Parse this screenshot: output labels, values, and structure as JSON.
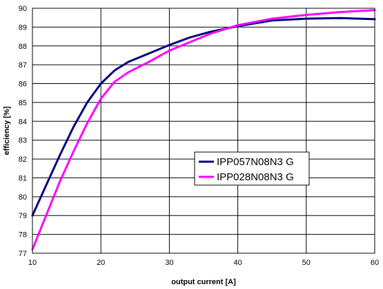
{
  "chart_data": {
    "type": "line",
    "xlabel": "output current [A]",
    "ylabel": "efficiency [%]",
    "xlim": [
      10,
      60
    ],
    "ylim": [
      77,
      90
    ],
    "x_ticks": [
      "10",
      "20",
      "30",
      "40",
      "50",
      "60"
    ],
    "y_ticks": [
      "77",
      "78",
      "79",
      "80",
      "81",
      "82",
      "83",
      "84",
      "85",
      "86",
      "87",
      "88",
      "89",
      "90"
    ],
    "grid": true,
    "legend_position": "center-right",
    "series": [
      {
        "name": "IPP057N08N3 G",
        "color": "#000080",
        "points": [
          [
            10,
            79.0
          ],
          [
            12,
            80.6
          ],
          [
            14,
            82.2
          ],
          [
            16,
            83.7
          ],
          [
            18,
            85.0
          ],
          [
            20,
            86.0
          ],
          [
            22,
            86.7
          ],
          [
            24,
            87.15
          ],
          [
            27,
            87.6
          ],
          [
            30,
            88.05
          ],
          [
            33,
            88.45
          ],
          [
            36,
            88.75
          ],
          [
            40,
            89.05
          ],
          [
            45,
            89.35
          ],
          [
            50,
            89.45
          ],
          [
            55,
            89.48
          ],
          [
            60,
            89.42
          ]
        ]
      },
      {
        "name": "IPP028N08N3 G",
        "color": "#ff00ff",
        "points": [
          [
            10,
            77.2
          ],
          [
            12,
            79.0
          ],
          [
            14,
            80.8
          ],
          [
            16,
            82.4
          ],
          [
            18,
            83.9
          ],
          [
            20,
            85.2
          ],
          [
            22,
            86.1
          ],
          [
            24,
            86.6
          ],
          [
            27,
            87.15
          ],
          [
            30,
            87.75
          ],
          [
            33,
            88.2
          ],
          [
            36,
            88.65
          ],
          [
            40,
            89.1
          ],
          [
            45,
            89.45
          ],
          [
            50,
            89.65
          ],
          [
            55,
            89.8
          ],
          [
            60,
            89.9
          ]
        ]
      }
    ]
  }
}
